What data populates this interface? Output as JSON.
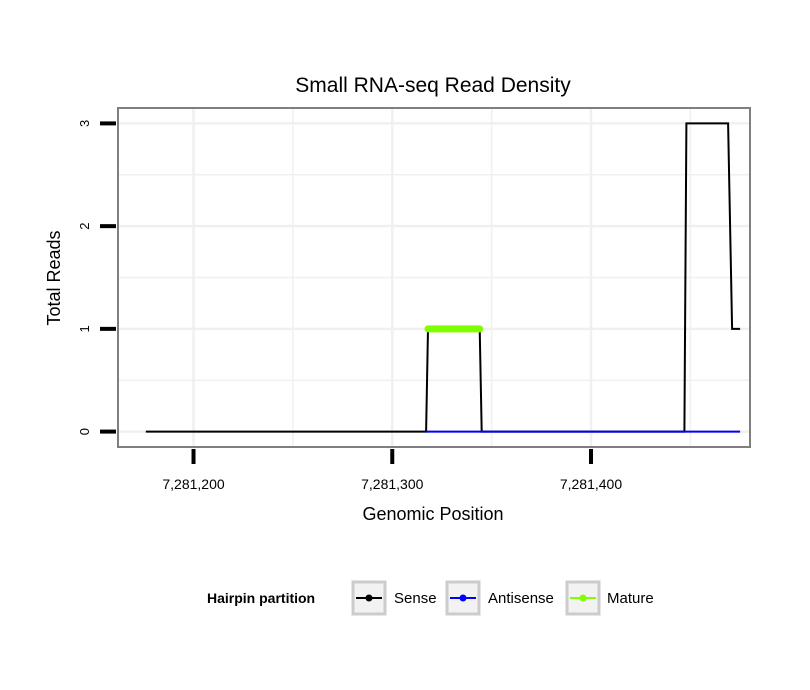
{
  "chart_data": {
    "type": "line",
    "title": "Small RNA-seq Read Density",
    "xlabel": "Genomic Position",
    "ylabel": "Total Reads",
    "xlim": [
      7281162,
      7281480
    ],
    "ylim": [
      -0.15,
      3.15
    ],
    "x_ticks": [
      7281200,
      7281300,
      7281400
    ],
    "x_tick_labels": [
      "7,281,200",
      "7,281,300",
      "7,281,400"
    ],
    "y_ticks": [
      0,
      1,
      2,
      3
    ],
    "y_tick_labels": [
      "0",
      "1",
      "2",
      "3"
    ],
    "grid": true,
    "legend": {
      "title": "Hairpin partition",
      "position": "bottom",
      "entries": [
        "Sense",
        "Antisense",
        "Mature"
      ]
    },
    "series": [
      {
        "name": "Sense",
        "color": "#000000",
        "x": [
          7281176,
          7281317,
          7281318,
          7281344,
          7281345,
          7281447,
          7281448,
          7281469,
          7281471,
          7281475
        ],
        "y": [
          0,
          0,
          1,
          1,
          0,
          0,
          3,
          3,
          1,
          1
        ]
      },
      {
        "name": "Antisense",
        "color": "#0000ff",
        "x": [
          7281317,
          7281345,
          7281448,
          7281475
        ],
        "y": [
          0,
          0,
          0,
          0
        ]
      },
      {
        "name": "Mature",
        "color": "#80ff00",
        "x": [
          7281318,
          7281344
        ],
        "y": [
          1,
          1
        ]
      }
    ]
  }
}
